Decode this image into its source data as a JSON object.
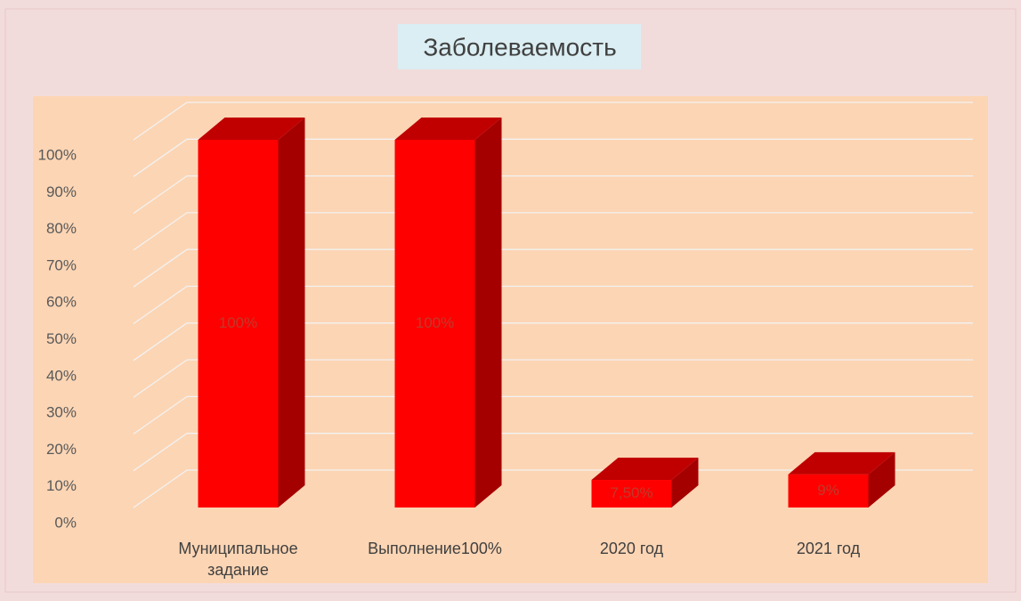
{
  "chart_data": {
    "type": "bar3d",
    "title": "Заболеваемость",
    "categories": [
      "Муниципальное задание",
      "Выполнение100%",
      "2020 год",
      "2021 год"
    ],
    "values": [
      100,
      100,
      7.5,
      9
    ],
    "value_labels": [
      "100%",
      "100%",
      "7,50%",
      "9%"
    ],
    "color": "#ff0000",
    "ylim": [
      0,
      100
    ],
    "yticks": [
      {
        "value": 0,
        "label": "0%"
      },
      {
        "value": 10,
        "label": "10%"
      },
      {
        "value": 20,
        "label": "20%"
      },
      {
        "value": 30,
        "label": "30%"
      },
      {
        "value": 40,
        "label": "40%"
      },
      {
        "value": 50,
        "label": "50%"
      },
      {
        "value": 60,
        "label": "60%"
      },
      {
        "value": 70,
        "label": "70%"
      },
      {
        "value": 80,
        "label": "80%"
      },
      {
        "value": 90,
        "label": "90%"
      },
      {
        "value": 100,
        "label": "100%"
      }
    ],
    "grid": true
  }
}
